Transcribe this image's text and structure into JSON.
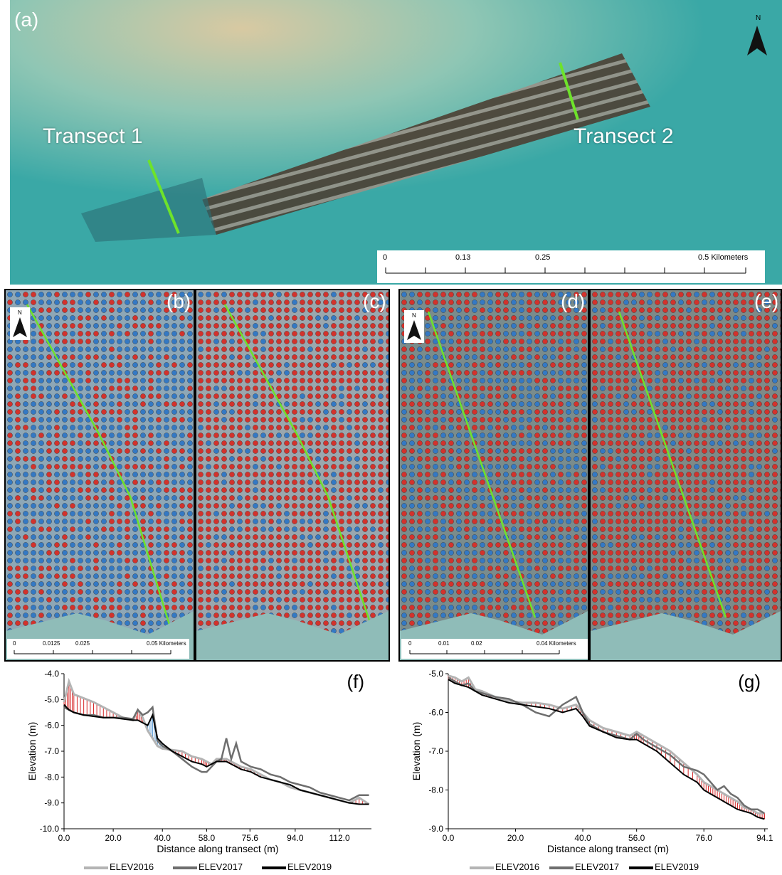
{
  "panels": {
    "a": {
      "label": "(a)",
      "transect1": "Transect 1",
      "transect2": "Transect 2",
      "scale": {
        "ticks": [
          "0",
          "0.13",
          "0.25",
          "0.5 Kilometers"
        ]
      }
    },
    "b": {
      "label": "(b)",
      "scale": {
        "ticks": [
          "0",
          "0.0125",
          "0.025",
          "0.05 Kilometers"
        ]
      }
    },
    "c": {
      "label": "(c)"
    },
    "d": {
      "label": "(d)",
      "scale": {
        "ticks": [
          "0",
          "0.01",
          "0.02",
          "0.04 Kilometers"
        ]
      }
    },
    "e": {
      "label": "(e)"
    }
  },
  "north_label": "N",
  "colors": {
    "water": "#3aa8a6",
    "reef": "#5a4a3c",
    "transect_line": "#6ee32a",
    "dot_red": "#d3322c",
    "dot_blue": "#3479c4",
    "elev2016": "#b4b4b4",
    "elev2017": "#6e6e6e",
    "elev2019": "#000000",
    "accretion": "#5b9bd5",
    "erosion": "#d62728"
  },
  "chart_data": [
    {
      "type": "line",
      "panel_label": "(f)",
      "xlabel": "Distance along transect (m)",
      "ylabel": "Elevation (m)",
      "xlim": [
        0,
        125
      ],
      "ylim": [
        -10.0,
        -4.0
      ],
      "x_ticks": [
        0.0,
        20.0,
        40.0,
        58.0,
        75.6,
        94.0,
        112.0
      ],
      "x_tick_labels": [
        "0.0",
        "20.0",
        "40.0",
        "58.0",
        "75.6",
        "94.0",
        "112.0"
      ],
      "y_ticks": [
        -4.0,
        -5.0,
        -6.0,
        -7.0,
        -8.0,
        -9.0,
        -10.0
      ],
      "y_tick_labels": [
        "-4.0",
        "-5.0",
        "-6.0",
        "-7.0",
        "-8.0",
        "-9.0",
        "-10.0"
      ],
      "grid": false,
      "series": [
        {
          "name": "ELEV2016",
          "x": [
            0,
            2,
            4,
            8,
            12,
            16,
            20,
            24,
            28,
            30,
            32,
            34,
            36,
            38,
            40,
            44,
            48,
            52,
            56,
            58,
            60,
            62,
            64,
            66,
            68,
            70,
            72,
            76,
            80,
            84,
            88,
            92,
            96,
            100,
            104,
            108,
            112,
            116,
            120,
            124
          ],
          "y": [
            -5.1,
            -4.3,
            -4.8,
            -4.95,
            -5.1,
            -5.3,
            -5.5,
            -5.7,
            -5.8,
            -5.4,
            -5.7,
            -6.2,
            -6.5,
            -6.8,
            -6.9,
            -6.95,
            -7.0,
            -7.2,
            -7.3,
            -7.4,
            -7.5,
            -7.3,
            -7.3,
            -7.3,
            -7.4,
            -7.5,
            -7.6,
            -7.7,
            -7.9,
            -8.1,
            -8.2,
            -8.4,
            -8.5,
            -8.6,
            -8.7,
            -8.8,
            -8.9,
            -9.0,
            -8.8,
            -9.05
          ]
        },
        {
          "name": "ELEV2017",
          "x": [
            0,
            2,
            4,
            8,
            12,
            16,
            20,
            24,
            28,
            30,
            32,
            34,
            36,
            38,
            40,
            44,
            48,
            52,
            56,
            58,
            60,
            62,
            64,
            66,
            68,
            70,
            72,
            76,
            80,
            84,
            88,
            92,
            96,
            100,
            104,
            108,
            112,
            116,
            120,
            124
          ],
          "y": [
            -5.3,
            -5.4,
            -5.5,
            -5.6,
            -5.6,
            -5.7,
            -5.7,
            -5.7,
            -5.75,
            -5.4,
            -5.6,
            -5.5,
            -5.3,
            -6.6,
            -6.8,
            -7.0,
            -7.3,
            -7.6,
            -7.8,
            -7.8,
            -7.6,
            -7.4,
            -7.3,
            -6.5,
            -7.3,
            -6.7,
            -7.4,
            -7.6,
            -7.7,
            -7.9,
            -8.0,
            -8.2,
            -8.3,
            -8.4,
            -8.6,
            -8.7,
            -8.8,
            -8.9,
            -8.7,
            -8.7
          ]
        },
        {
          "name": "ELEV2019",
          "x": [
            0,
            2,
            4,
            8,
            12,
            16,
            20,
            24,
            28,
            30,
            32,
            34,
            36,
            38,
            40,
            44,
            48,
            52,
            56,
            58,
            60,
            62,
            64,
            66,
            68,
            70,
            72,
            76,
            80,
            84,
            88,
            92,
            96,
            100,
            104,
            108,
            112,
            116,
            120,
            124
          ],
          "y": [
            -5.2,
            -5.4,
            -5.5,
            -5.6,
            -5.65,
            -5.7,
            -5.7,
            -5.75,
            -5.8,
            -5.8,
            -5.9,
            -6.0,
            -5.6,
            -6.5,
            -6.7,
            -7.0,
            -7.2,
            -7.4,
            -7.5,
            -7.6,
            -7.5,
            -7.4,
            -7.4,
            -7.4,
            -7.5,
            -7.6,
            -7.7,
            -7.8,
            -8.0,
            -8.1,
            -8.2,
            -8.3,
            -8.5,
            -8.6,
            -8.7,
            -8.8,
            -8.9,
            -9.0,
            -9.05,
            -9.05
          ]
        }
      ]
    },
    {
      "type": "line",
      "panel_label": "(g)",
      "xlabel": "Distance along transect (m)",
      "ylabel": "Elevation (m)",
      "xlim": [
        0,
        95
      ],
      "ylim": [
        -9.0,
        -5.0
      ],
      "x_ticks": [
        0.0,
        20.0,
        40.0,
        56.0,
        76.0,
        94.1
      ],
      "x_tick_labels": [
        "0.0",
        "20.0",
        "40.0",
        "56.0",
        "76.0",
        "94.1"
      ],
      "y_ticks": [
        -5.0,
        -6.0,
        -7.0,
        -8.0,
        -9.0
      ],
      "y_tick_labels": [
        "-5.0",
        "-6.0",
        "-7.0",
        "-8.0",
        "-9.0"
      ],
      "grid": false,
      "series": [
        {
          "name": "ELEV2016",
          "x": [
            0,
            2,
            4,
            6,
            8,
            10,
            14,
            18,
            22,
            26,
            30,
            34,
            38,
            40,
            42,
            46,
            50,
            54,
            56,
            58,
            62,
            66,
            70,
            74,
            76,
            78,
            80,
            82,
            84,
            86,
            88,
            90,
            92,
            94
          ],
          "y": [
            -5.05,
            -5.1,
            -5.2,
            -5.1,
            -5.4,
            -5.45,
            -5.6,
            -5.7,
            -5.75,
            -5.75,
            -5.8,
            -5.9,
            -5.8,
            -6.0,
            -6.2,
            -6.4,
            -6.5,
            -6.6,
            -6.5,
            -6.6,
            -6.8,
            -7.0,
            -7.3,
            -7.6,
            -7.8,
            -7.9,
            -8.0,
            -8.1,
            -8.2,
            -8.3,
            -8.45,
            -8.5,
            -8.6,
            -8.6
          ]
        },
        {
          "name": "ELEV2017",
          "x": [
            0,
            2,
            4,
            6,
            8,
            10,
            14,
            18,
            22,
            26,
            30,
            34,
            38,
            40,
            42,
            46,
            50,
            54,
            56,
            58,
            62,
            66,
            70,
            74,
            76,
            78,
            80,
            82,
            84,
            86,
            88,
            90,
            92,
            94
          ],
          "y": [
            -5.1,
            -5.2,
            -5.3,
            -5.25,
            -5.45,
            -5.5,
            -5.6,
            -5.65,
            -5.8,
            -6.0,
            -6.1,
            -5.8,
            -5.6,
            -6.0,
            -6.3,
            -6.5,
            -6.6,
            -6.7,
            -6.55,
            -6.7,
            -6.9,
            -7.1,
            -7.4,
            -7.5,
            -7.6,
            -7.8,
            -8.0,
            -7.9,
            -8.1,
            -8.2,
            -8.4,
            -8.5,
            -8.5,
            -8.6
          ]
        },
        {
          "name": "ELEV2019",
          "x": [
            0,
            2,
            4,
            6,
            8,
            10,
            14,
            18,
            22,
            26,
            30,
            34,
            38,
            40,
            42,
            46,
            50,
            54,
            56,
            58,
            62,
            66,
            70,
            74,
            76,
            78,
            80,
            82,
            84,
            86,
            88,
            90,
            92,
            94
          ],
          "y": [
            -5.15,
            -5.25,
            -5.3,
            -5.35,
            -5.45,
            -5.55,
            -5.65,
            -5.75,
            -5.8,
            -5.85,
            -5.9,
            -6.0,
            -5.9,
            -6.1,
            -6.35,
            -6.5,
            -6.65,
            -6.7,
            -6.7,
            -6.8,
            -7.0,
            -7.3,
            -7.6,
            -7.8,
            -8.0,
            -8.1,
            -8.2,
            -8.3,
            -8.4,
            -8.5,
            -8.55,
            -8.6,
            -8.7,
            -8.75
          ]
        }
      ]
    }
  ],
  "legend": {
    "items": [
      "ELEV2016",
      "ELEV2017",
      "ELEV2019"
    ]
  }
}
